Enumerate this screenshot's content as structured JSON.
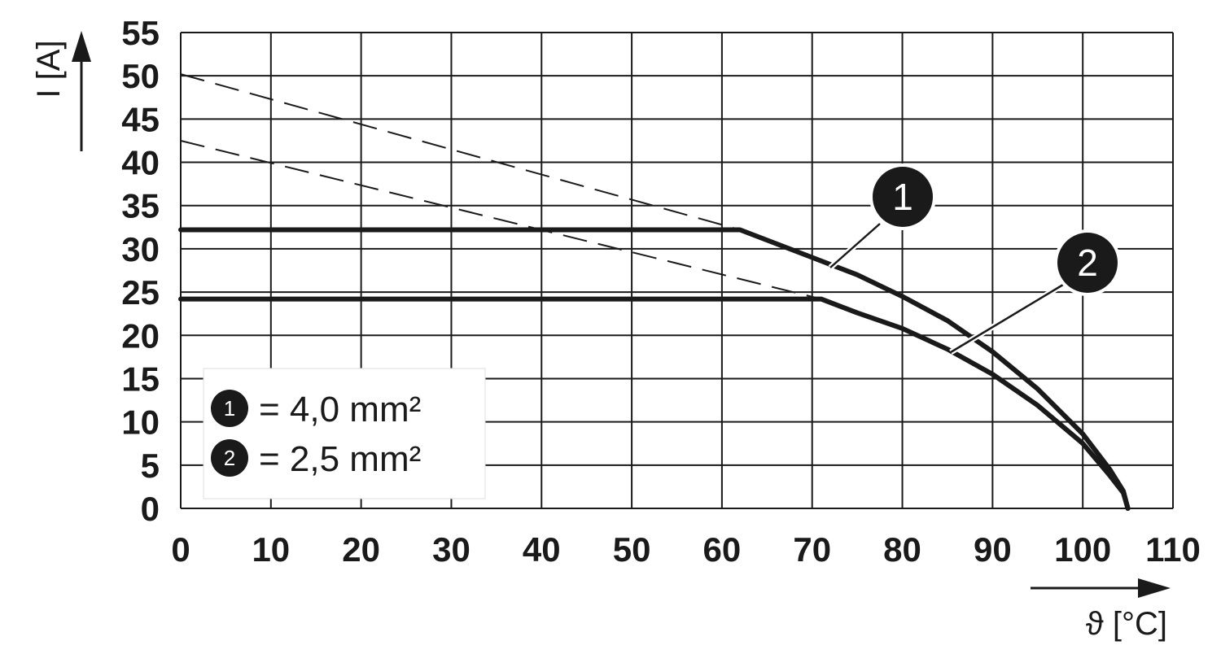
{
  "chart_data": {
    "type": "line",
    "xlabel": "ϑ [°C]",
    "ylabel": "I [A]",
    "xlim": [
      0,
      110
    ],
    "ylim": [
      0,
      55
    ],
    "x_ticks": [
      0,
      10,
      20,
      30,
      40,
      50,
      60,
      70,
      80,
      90,
      100,
      110
    ],
    "y_ticks": [
      0,
      5,
      10,
      15,
      20,
      25,
      30,
      35,
      40,
      45,
      50,
      55
    ],
    "grid": true,
    "legend_position": "bottom-left",
    "series": [
      {
        "name": "= 4,0 mm²",
        "marker_label": "1",
        "style": "solid",
        "x": [
          0,
          62,
          66,
          70,
          75,
          80,
          85,
          90,
          95,
          100,
          103,
          104.5,
          105
        ],
        "y": [
          32.2,
          32.2,
          30.6,
          29,
          27,
          24.5,
          21.7,
          18.1,
          13.8,
          8.6,
          4.5,
          2,
          0
        ]
      },
      {
        "name": "= 2,5 mm²",
        "marker_label": "2",
        "style": "solid",
        "x": [
          0,
          71,
          75,
          80,
          85,
          90,
          95,
          100,
          103,
          104.5,
          105
        ],
        "y": [
          24.2,
          24.2,
          22.6,
          20.8,
          18.4,
          15.5,
          11.9,
          7.5,
          3.8,
          1.8,
          0
        ]
      },
      {
        "style": "dashed",
        "x": [
          0,
          62
        ],
        "y": [
          50.2,
          32.2
        ]
      },
      {
        "style": "dashed",
        "x": [
          0,
          71
        ],
        "y": [
          42.5,
          24.2
        ]
      }
    ]
  }
}
